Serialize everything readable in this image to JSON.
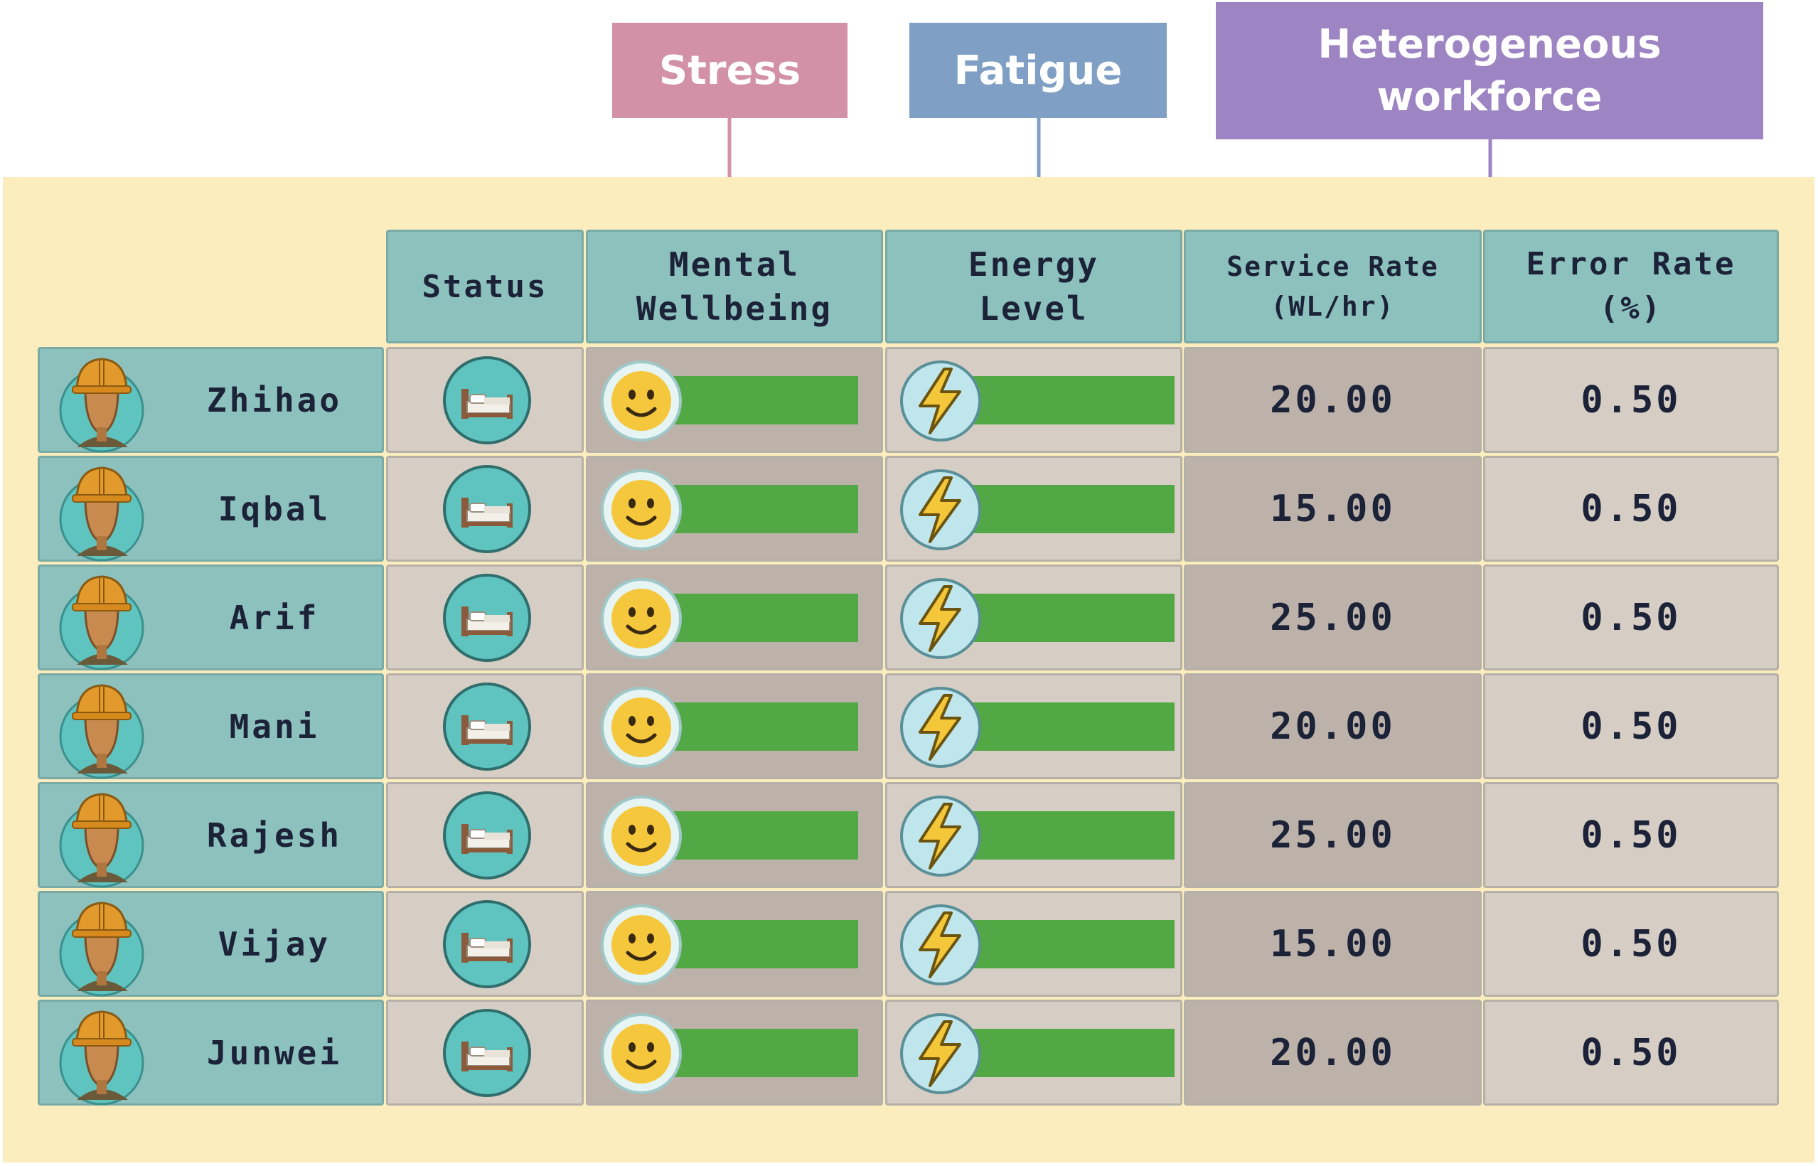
{
  "callouts": {
    "stress": "Stress",
    "fatigue": "Fatigue",
    "heterogeneous_line1": "Heterogeneous",
    "heterogeneous_line2": "workforce"
  },
  "columns": {
    "status": "Status",
    "mental_line1": "Mental",
    "mental_line2": "Wellbeing",
    "energy_line1": "Energy",
    "energy_line2": "Level",
    "service_line1": "Service Rate",
    "service_line2": "(WL/hr)",
    "error_line1": "Error Rate",
    "error_line2": "(%)"
  },
  "icons": {
    "worker": "worker-avatar-icon",
    "status": "bed-icon",
    "mental": "smiley-face-icon",
    "energy": "lightning-bolt-icon"
  },
  "colors": {
    "stress": "#d291a6",
    "fatigue": "#7f9fc4",
    "heterogeneous": "#9d84c2",
    "bar": "#52a845",
    "header": "#8cc1be"
  },
  "workers": [
    {
      "name": "Zhihao",
      "mental_level": 1.0,
      "energy_level": 1.0,
      "service_rate": "20.00",
      "error_rate": "0.50"
    },
    {
      "name": "Iqbal",
      "mental_level": 1.0,
      "energy_level": 1.0,
      "service_rate": "15.00",
      "error_rate": "0.50"
    },
    {
      "name": "Arif",
      "mental_level": 1.0,
      "energy_level": 1.0,
      "service_rate": "25.00",
      "error_rate": "0.50"
    },
    {
      "name": "Mani",
      "mental_level": 1.0,
      "energy_level": 1.0,
      "service_rate": "20.00",
      "error_rate": "0.50"
    },
    {
      "name": "Rajesh",
      "mental_level": 1.0,
      "energy_level": 1.0,
      "service_rate": "25.00",
      "error_rate": "0.50"
    },
    {
      "name": "Vijay",
      "mental_level": 1.0,
      "energy_level": 1.0,
      "service_rate": "15.00",
      "error_rate": "0.50"
    },
    {
      "name": "Junwei",
      "mental_level": 1.0,
      "energy_level": 1.0,
      "service_rate": "20.00",
      "error_rate": "0.50"
    }
  ]
}
